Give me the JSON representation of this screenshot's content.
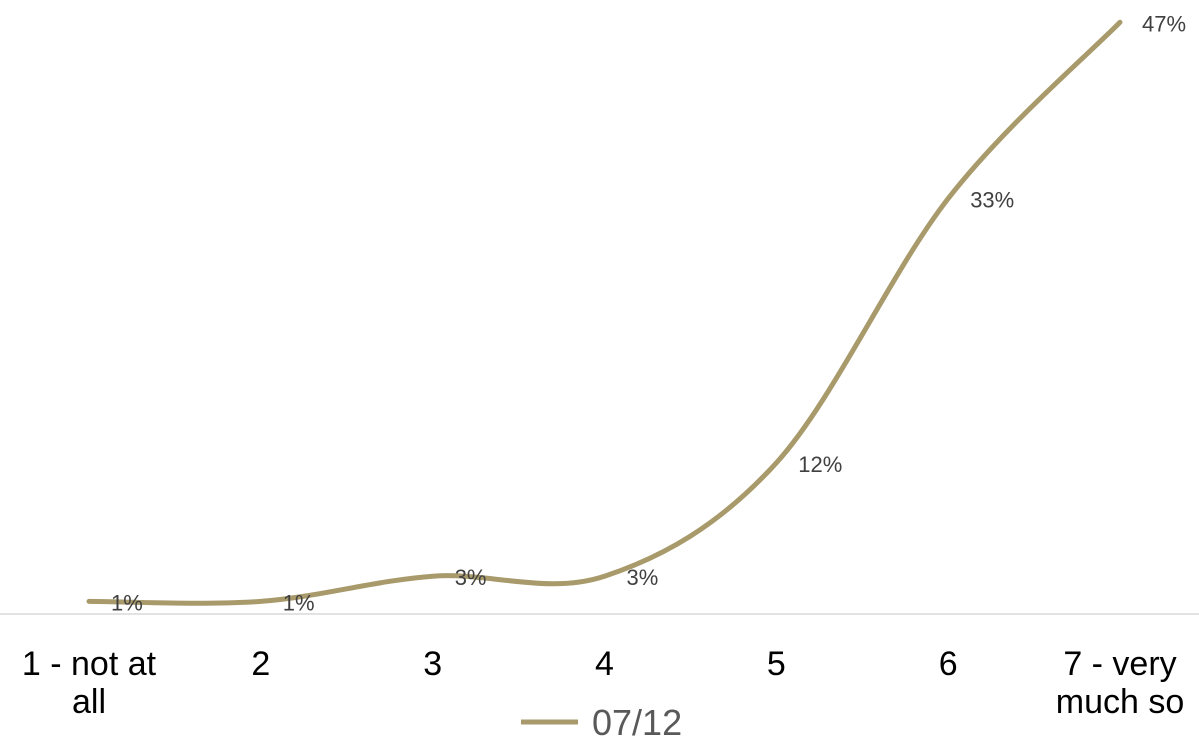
{
  "chart_data": {
    "type": "line",
    "categories": [
      "1 - not at all",
      "2",
      "3",
      "4",
      "5",
      "6",
      "7 - very much so"
    ],
    "category_lines": [
      [
        "1 - not at",
        "all"
      ],
      [
        "2"
      ],
      [
        "3"
      ],
      [
        "4"
      ],
      [
        "5"
      ],
      [
        "6"
      ],
      [
        "7 - very",
        "much so"
      ]
    ],
    "series": [
      {
        "name": "07/12",
        "values": [
          1,
          1,
          3,
          3,
          12,
          33,
          47
        ],
        "labels": [
          "1%",
          "1%",
          "3%",
          "3%",
          "12%",
          "33%",
          "47%"
        ],
        "color": "#A89A6A"
      }
    ],
    "ylim": [
      0,
      47.5
    ],
    "smooth": true,
    "grid": false,
    "legend_position": "bottom",
    "data_labels": true
  }
}
